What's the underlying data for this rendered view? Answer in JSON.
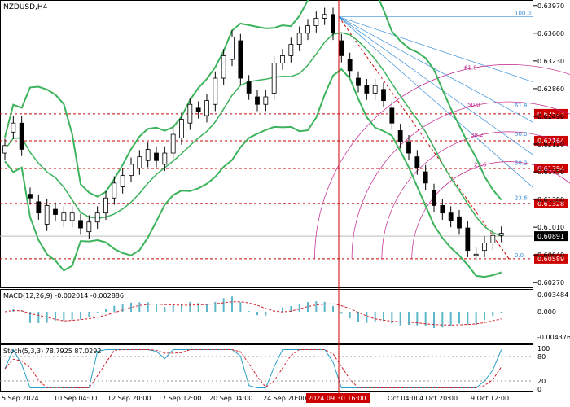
{
  "symbol": "NZDUSD,H4",
  "colors": {
    "background": "#ffffff",
    "candle": "#000000",
    "bollinger": "#3cb35c",
    "level_line": "#cc0000",
    "price_badge_bg": "#cc0000",
    "current_price_badge_bg": "#000000",
    "fib_fan": "#3a8fd9",
    "fib_arc": "#c0208a",
    "fib_level_text": "#c0208a",
    "fib_label_blue": "#3a8fd9",
    "macd_hist": "#5bb7c9",
    "macd_signal": "#d0202a",
    "stoch_main": "#29a0c8",
    "stoch_signal": "#d0202a",
    "grid": "#dddddd"
  },
  "price_axis": {
    "ticks": [
      "0.63970",
      "0.63600",
      "0.63230",
      "0.62860",
      "0.62490",
      "0.62120",
      "0.61750",
      "0.61380",
      "0.61010",
      "0.60640",
      "0.60270"
    ],
    "levels": [
      {
        "label": "0.62523",
        "value": 0.62523
      },
      {
        "label": "0.62164",
        "value": 0.62164
      },
      {
        "label": "0.61794",
        "value": 0.61794
      },
      {
        "label": "0.61328",
        "value": 0.61328
      },
      {
        "label": "0.60589",
        "value": 0.60589
      }
    ],
    "current": {
      "label": "0.60891",
      "value": 0.60891
    }
  },
  "fib_fan_labels": [
    "100.0",
    "61.8",
    "50.0",
    "38.2",
    "23.6",
    "0.0"
  ],
  "fib_arc_labels": [
    "61.8",
    "50.0",
    "38.2",
    "23.6"
  ],
  "macd": {
    "title": "MACD(12,26,9) -0.002014 -0.002886",
    "ticks": [
      "0.003484",
      "0.000",
      "-0.004376"
    ]
  },
  "stoch": {
    "title": "Stoch(5,3,3) 78.7925 87.0292",
    "ticks": [
      "100",
      "80",
      "20",
      "0"
    ]
  },
  "time_axis": {
    "labels": [
      "5 Sep 2024",
      "10 Sep 04:00",
      "12 Sep 20:00",
      "17 Sep 12:00",
      "20 Sep 04:00",
      "24 Sep 20:00",
      "2024.09.30 16:00",
      "Oct 04:00",
      "4 Oct 20:00",
      "9 Oct 12:00"
    ],
    "highlight": "2024.09.30 16:00"
  },
  "chart_data": {
    "type": "candlestick",
    "instrument": "NZDUSD",
    "timeframe": "H4",
    "price_range": [
      0.6024,
      0.64
    ],
    "close_path": [
      [
        0.62,
        0.621
      ],
      [
        0.6228,
        0.624
      ],
      [
        0.624,
        0.6205
      ],
      [
        0.6145,
        0.614
      ],
      [
        0.6135,
        0.612
      ],
      [
        0.6105,
        0.613
      ],
      [
        0.6125,
        0.6118
      ],
      [
        0.611,
        0.612
      ],
      [
        0.611,
        0.612
      ],
      [
        0.611,
        0.61
      ],
      [
        0.6095,
        0.6108
      ],
      [
        0.6108,
        0.612
      ],
      [
        0.612,
        0.614
      ],
      [
        0.614,
        0.616
      ],
      [
        0.6155,
        0.617
      ],
      [
        0.617,
        0.6185
      ],
      [
        0.618,
        0.6195
      ],
      [
        0.619,
        0.6205
      ],
      [
        0.62,
        0.619
      ],
      [
        0.6185,
        0.62
      ],
      [
        0.62,
        0.6225
      ],
      [
        0.622,
        0.6245
      ],
      [
        0.624,
        0.6265
      ],
      [
        0.626,
        0.6255
      ],
      [
        0.625,
        0.627
      ],
      [
        0.6265,
        0.63
      ],
      [
        0.63,
        0.633
      ],
      [
        0.6325,
        0.6355
      ],
      [
        0.635,
        0.63
      ],
      [
        0.6295,
        0.628
      ],
      [
        0.6275,
        0.6265
      ],
      [
        0.6265,
        0.6275
      ],
      [
        0.628,
        0.632
      ],
      [
        0.632,
        0.633
      ],
      [
        0.633,
        0.6345
      ],
      [
        0.6345,
        0.636
      ],
      [
        0.636,
        0.637
      ],
      [
        0.637,
        0.638
      ],
      [
        0.638,
        0.6385
      ],
      [
        0.6385,
        0.636
      ],
      [
        0.635,
        0.633
      ],
      [
        0.6325,
        0.631
      ],
      [
        0.63,
        0.629
      ],
      [
        0.629,
        0.628
      ],
      [
        0.628,
        0.629
      ],
      [
        0.6285,
        0.627
      ],
      [
        0.626,
        0.624
      ],
      [
        0.623,
        0.6215
      ],
      [
        0.6215,
        0.62
      ],
      [
        0.6195,
        0.618
      ],
      [
        0.6175,
        0.616
      ],
      [
        0.615,
        0.613
      ],
      [
        0.613,
        0.612
      ],
      [
        0.612,
        0.611
      ],
      [
        0.6115,
        0.61
      ],
      [
        0.61,
        0.607
      ],
      [
        0.6065,
        0.6065
      ],
      [
        0.607,
        0.608
      ],
      [
        0.608,
        0.609
      ],
      [
        0.609,
        0.6093
      ]
    ]
  }
}
